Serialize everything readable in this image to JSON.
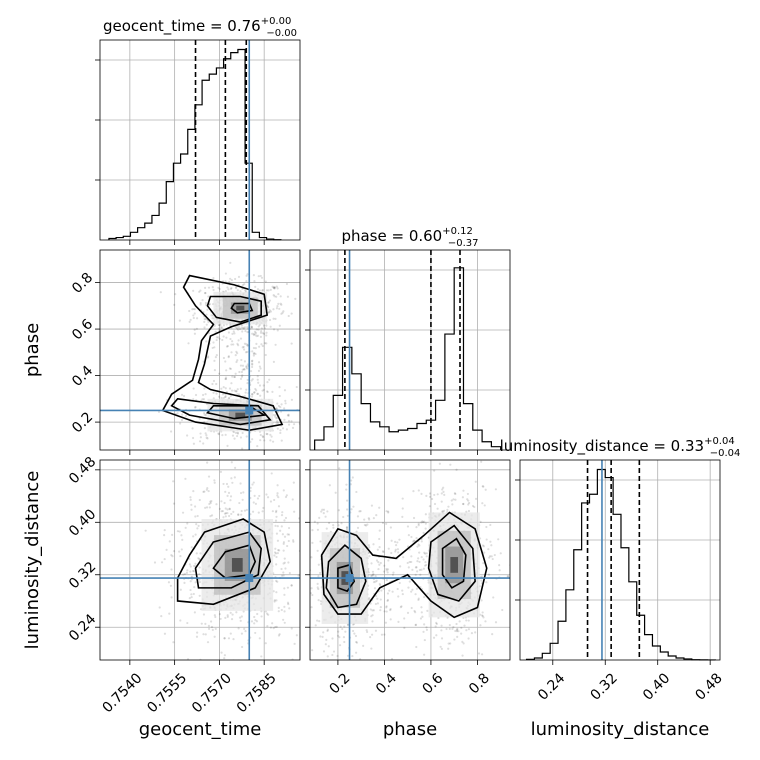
{
  "chart_data": {
    "type": "corner",
    "parameters": [
      "geocent_time",
      "phase",
      "luminosity_distance"
    ],
    "truths": {
      "geocent_time": 0.758,
      "phase": 0.25,
      "luminosity_distance": 0.315
    },
    "ranges": {
      "geocent_time": [
        0.753,
        0.7597
      ],
      "phase": [
        0.08,
        0.94
      ],
      "luminosity_distance": [
        0.19,
        0.495
      ]
    },
    "grid": true,
    "diagonal": [
      {
        "param": "geocent_time",
        "title": "geocent_time = 0.76",
        "title_plus": "+0.00",
        "title_minus": "−0.00",
        "quantiles": [
          0.7562,
          0.7572,
          0.7579
        ],
        "ymax": 62,
        "bins": [
          0.7533,
          0.75354,
          0.75378,
          0.75402,
          0.75426,
          0.7545,
          0.75474,
          0.75498,
          0.75522,
          0.75546,
          0.7557,
          0.75594,
          0.75618,
          0.75642,
          0.75666,
          0.7569,
          0.75714,
          0.75738,
          0.75762,
          0.75786,
          0.7581,
          0.75834,
          0.75858,
          0.75882,
          0.75906
        ],
        "counts": [
          0.5,
          0.8,
          1.2,
          2.5,
          4.0,
          5.5,
          8,
          12,
          19,
          25,
          28,
          36,
          44,
          52,
          54,
          56,
          59,
          61,
          62,
          25,
          2.5,
          0.8,
          0.3,
          0.1
        ]
      },
      {
        "param": "phase",
        "title": "phase = 0.60",
        "title_plus": "+0.12",
        "title_minus": "−0.37",
        "quantiles": [
          0.23,
          0.6,
          0.725
        ],
        "ymax": 115,
        "bins": [
          0.1,
          0.14,
          0.18,
          0.22,
          0.26,
          0.3,
          0.34,
          0.38,
          0.42,
          0.46,
          0.5,
          0.54,
          0.58,
          0.62,
          0.66,
          0.7,
          0.74,
          0.78,
          0.82,
          0.86,
          0.9
        ],
        "counts": [
          6,
          14,
          33,
          62,
          46,
          28,
          17,
          14,
          11,
          12,
          13,
          16,
          18,
          30,
          70,
          110,
          28,
          12,
          5,
          2
        ]
      },
      {
        "param": "luminosity_distance",
        "title": "luminosity_distance = 0.33",
        "title_plus": "+0.04",
        "title_minus": "−0.04",
        "quantiles": [
          0.293,
          0.329,
          0.372
        ],
        "ymax": 2850,
        "bins": [
          0.2,
          0.212,
          0.224,
          0.236,
          0.248,
          0.26,
          0.272,
          0.284,
          0.296,
          0.308,
          0.32,
          0.332,
          0.344,
          0.356,
          0.368,
          0.38,
          0.392,
          0.404,
          0.416,
          0.428,
          0.44,
          0.452,
          0.464,
          0.476,
          0.488
        ],
        "counts": [
          10,
          30,
          100,
          250,
          580,
          1050,
          1650,
          2350,
          2480,
          2850,
          2730,
          2180,
          1680,
          1170,
          670,
          380,
          210,
          120,
          60,
          30,
          15,
          5,
          2,
          1
        ]
      }
    ],
    "offdiagonal": [
      {
        "x": "geocent_time",
        "y": "phase",
        "modes": [
          {
            "cx": 0.7577,
            "cy": 0.69,
            "sx": 0.00045,
            "sy": 0.035,
            "weight": 0.55
          },
          {
            "cx": 0.7577,
            "cy": 0.23,
            "sx": 0.00055,
            "sy": 0.035,
            "weight": 0.45
          }
        ],
        "outer_contour": [
          [
            0.756,
            0.83
          ],
          [
            0.7575,
            0.79
          ],
          [
            0.7585,
            0.75
          ],
          [
            0.7586,
            0.66
          ],
          [
            0.7574,
            0.61
          ],
          [
            0.7567,
            0.57
          ],
          [
            0.7565,
            0.45
          ],
          [
            0.7563,
            0.37
          ],
          [
            0.7567,
            0.34
          ],
          [
            0.7577,
            0.31
          ],
          [
            0.7588,
            0.27
          ],
          [
            0.7591,
            0.19
          ],
          [
            0.758,
            0.165
          ],
          [
            0.7562,
            0.2
          ],
          [
            0.7551,
            0.25
          ],
          [
            0.7554,
            0.32
          ],
          [
            0.7561,
            0.38
          ],
          [
            0.7563,
            0.47
          ],
          [
            0.7564,
            0.55
          ],
          [
            0.7568,
            0.62
          ],
          [
            0.7562,
            0.7
          ],
          [
            0.7558,
            0.78
          ]
        ],
        "middle_contour": [
          [
            0.7567,
            0.74
          ],
          [
            0.7577,
            0.74
          ],
          [
            0.7584,
            0.72
          ],
          [
            0.7584,
            0.66
          ],
          [
            0.7577,
            0.63
          ],
          [
            0.7569,
            0.65
          ],
          [
            0.7566,
            0.7
          ]
        ],
        "middle_contour_2": [
          [
            0.7556,
            0.3
          ],
          [
            0.7568,
            0.28
          ],
          [
            0.7583,
            0.27
          ],
          [
            0.7587,
            0.21
          ],
          [
            0.7577,
            0.19
          ],
          [
            0.756,
            0.23
          ],
          [
            0.7554,
            0.27
          ]
        ],
        "inner_contour": [
          [
            0.7575,
            0.71
          ],
          [
            0.758,
            0.71
          ],
          [
            0.7581,
            0.68
          ],
          [
            0.7576,
            0.67
          ],
          [
            0.7574,
            0.69
          ]
        ],
        "inner_contour_2": [
          [
            0.7568,
            0.27
          ],
          [
            0.758,
            0.27
          ],
          [
            0.7585,
            0.23
          ],
          [
            0.7575,
            0.215
          ],
          [
            0.7566,
            0.24
          ]
        ]
      },
      {
        "x": "geocent_time",
        "y": "luminosity_distance",
        "modes": [
          {
            "cx": 0.7576,
            "cy": 0.335,
            "sx": 0.0006,
            "sy": 0.035,
            "weight": 1.0
          }
        ],
        "outer_contour": [
          [
            0.7565,
            0.385
          ],
          [
            0.7578,
            0.405
          ],
          [
            0.7585,
            0.385
          ],
          [
            0.7587,
            0.34
          ],
          [
            0.7582,
            0.3
          ],
          [
            0.7568,
            0.275
          ],
          [
            0.7556,
            0.28
          ],
          [
            0.7556,
            0.315
          ],
          [
            0.756,
            0.35
          ]
        ],
        "middle_contour": [
          [
            0.7568,
            0.37
          ],
          [
            0.758,
            0.385
          ],
          [
            0.7584,
            0.36
          ],
          [
            0.7583,
            0.32
          ],
          [
            0.7574,
            0.3
          ],
          [
            0.7563,
            0.3
          ],
          [
            0.7562,
            0.33
          ]
        ],
        "inner_contour": [
          [
            0.7572,
            0.355
          ],
          [
            0.758,
            0.365
          ],
          [
            0.7582,
            0.34
          ],
          [
            0.758,
            0.32
          ],
          [
            0.7572,
            0.315
          ],
          [
            0.7568,
            0.33
          ]
        ]
      },
      {
        "x": "phase",
        "y": "luminosity_distance",
        "modes": [
          {
            "cx": 0.23,
            "cy": 0.315,
            "sx": 0.05,
            "sy": 0.035,
            "weight": 0.45
          },
          {
            "cx": 0.7,
            "cy": 0.335,
            "sx": 0.055,
            "sy": 0.04,
            "weight": 0.55
          }
        ],
        "outer_contour": [
          [
            0.13,
            0.35
          ],
          [
            0.2,
            0.39
          ],
          [
            0.28,
            0.38
          ],
          [
            0.35,
            0.35
          ],
          [
            0.45,
            0.345
          ],
          [
            0.57,
            0.38
          ],
          [
            0.68,
            0.415
          ],
          [
            0.79,
            0.39
          ],
          [
            0.84,
            0.33
          ],
          [
            0.8,
            0.27
          ],
          [
            0.7,
            0.255
          ],
          [
            0.6,
            0.28
          ],
          [
            0.5,
            0.32
          ],
          [
            0.38,
            0.3
          ],
          [
            0.3,
            0.26
          ],
          [
            0.2,
            0.26
          ],
          [
            0.14,
            0.29
          ]
        ],
        "middle_contour": [
          [
            0.16,
            0.34
          ],
          [
            0.23,
            0.365
          ],
          [
            0.3,
            0.345
          ],
          [
            0.32,
            0.31
          ],
          [
            0.28,
            0.275
          ],
          [
            0.2,
            0.27
          ],
          [
            0.15,
            0.3
          ]
        ],
        "middle_contour_2": [
          [
            0.6,
            0.37
          ],
          [
            0.7,
            0.395
          ],
          [
            0.78,
            0.36
          ],
          [
            0.79,
            0.31
          ],
          [
            0.72,
            0.28
          ],
          [
            0.63,
            0.29
          ],
          [
            0.59,
            0.33
          ]
        ],
        "inner_contour": [
          [
            0.2,
            0.33
          ],
          [
            0.25,
            0.335
          ],
          [
            0.27,
            0.31
          ],
          [
            0.24,
            0.295
          ],
          [
            0.2,
            0.3
          ]
        ],
        "inner_contour_2": [
          [
            0.65,
            0.36
          ],
          [
            0.71,
            0.375
          ],
          [
            0.75,
            0.35
          ],
          [
            0.74,
            0.31
          ],
          [
            0.69,
            0.3
          ],
          [
            0.65,
            0.32
          ]
        ]
      }
    ],
    "ticks": {
      "geocent_time": {
        "values": [
          0.754,
          0.7555,
          0.757,
          0.7585
        ],
        "labels": [
          "0.7540",
          "0.7555",
          "0.7570",
          "0.7585"
        ]
      },
      "phase": {
        "values": [
          0.2,
          0.4,
          0.6,
          0.8
        ],
        "labels": [
          "0.2",
          "0.4",
          "0.6",
          "0.8"
        ]
      },
      "luminosity_distance": {
        "values": [
          0.24,
          0.32,
          0.4,
          0.48
        ],
        "labels": [
          "0.24",
          "0.32",
          "0.40",
          "0.48"
        ]
      }
    },
    "axis_labels": {
      "geocent_time": "geocent_time",
      "phase": "phase",
      "luminosity_distance": "luminosity_distance"
    }
  }
}
